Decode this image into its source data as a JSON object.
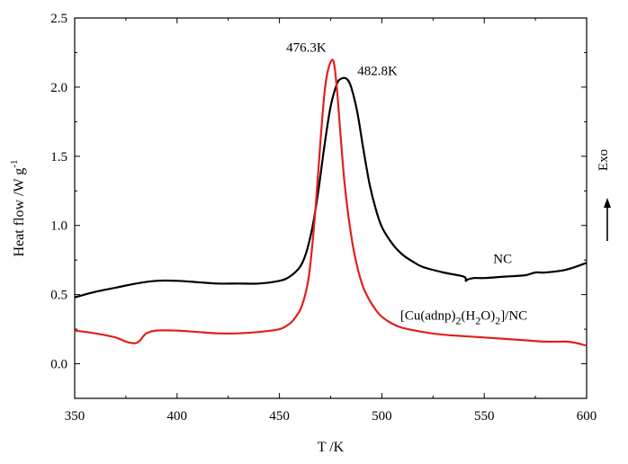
{
  "chart_data": {
    "type": "line",
    "xlabel": "T /K",
    "ylabel": "Heat flow /W g",
    "ylabel_superscript": "-1",
    "xlim": [
      350,
      600
    ],
    "ylim": [
      -0.25,
      2.5
    ],
    "x_ticks": [
      350,
      400,
      450,
      500,
      550,
      600
    ],
    "x_tick_labels": [
      "350",
      "400",
      "450",
      "500",
      "550",
      "600"
    ],
    "y_ticks": [
      0.0,
      0.5,
      1.0,
      1.5,
      2.0,
      2.5
    ],
    "y_tick_labels": [
      "0.0",
      "0.5",
      "1.0",
      "1.5",
      "2.0",
      "2.5"
    ],
    "grid": false,
    "exo_label": "Exo",
    "series": [
      {
        "name": "NC",
        "color": "#000000",
        "x": [
          350,
          360,
          370,
          380,
          390,
          400,
          410,
          420,
          430,
          440,
          450,
          455,
          460,
          463,
          466,
          469,
          472,
          475,
          478,
          480,
          482.8,
          485,
          488,
          491,
          494,
          497,
          500,
          505,
          510,
          515,
          520,
          530,
          540,
          541,
          542,
          545,
          550,
          560,
          570,
          575,
          580,
          590,
          600
        ],
        "y": [
          0.48,
          0.52,
          0.55,
          0.58,
          0.6,
          0.6,
          0.59,
          0.58,
          0.58,
          0.58,
          0.6,
          0.63,
          0.7,
          0.8,
          0.98,
          1.25,
          1.58,
          1.86,
          2.02,
          2.06,
          2.06,
          2.0,
          1.82,
          1.55,
          1.3,
          1.12,
          0.99,
          0.87,
          0.79,
          0.74,
          0.7,
          0.66,
          0.63,
          0.6,
          0.61,
          0.62,
          0.62,
          0.63,
          0.64,
          0.66,
          0.66,
          0.68,
          0.73
        ]
      },
      {
        "name": "[Cu(adnp)2(H2O)2]/NC",
        "color": "#e0201c",
        "x": [
          350,
          360,
          370,
          375,
          378,
          380,
          382,
          385,
          390,
          400,
          410,
          420,
          430,
          440,
          450,
          455,
          458,
          461,
          464,
          466,
          468,
          470,
          472,
          474,
          476.3,
          478,
          480,
          482,
          485,
          488,
          491,
          494,
          497,
          500,
          505,
          510,
          520,
          530,
          540,
          550,
          560,
          570,
          580,
          590,
          595,
          600
        ],
        "y": [
          0.24,
          0.22,
          0.19,
          0.16,
          0.15,
          0.15,
          0.17,
          0.22,
          0.24,
          0.24,
          0.23,
          0.22,
          0.22,
          0.23,
          0.25,
          0.29,
          0.34,
          0.42,
          0.6,
          0.85,
          1.2,
          1.6,
          1.96,
          2.14,
          2.19,
          2.0,
          1.62,
          1.28,
          0.93,
          0.7,
          0.55,
          0.46,
          0.39,
          0.34,
          0.29,
          0.26,
          0.23,
          0.21,
          0.2,
          0.19,
          0.18,
          0.17,
          0.16,
          0.16,
          0.15,
          0.13
        ]
      }
    ],
    "annotations": [
      {
        "text": "476.3K",
        "x": 476.3,
        "y": 2.19
      },
      {
        "text": "482.8K",
        "x": 482.8,
        "y": 2.06
      }
    ],
    "series_labels": {
      "nc": "NC",
      "complex_parts": [
        "[Cu(adnp)",
        "2",
        "(H",
        "2",
        "O)",
        "2",
        "]/NC"
      ]
    }
  }
}
